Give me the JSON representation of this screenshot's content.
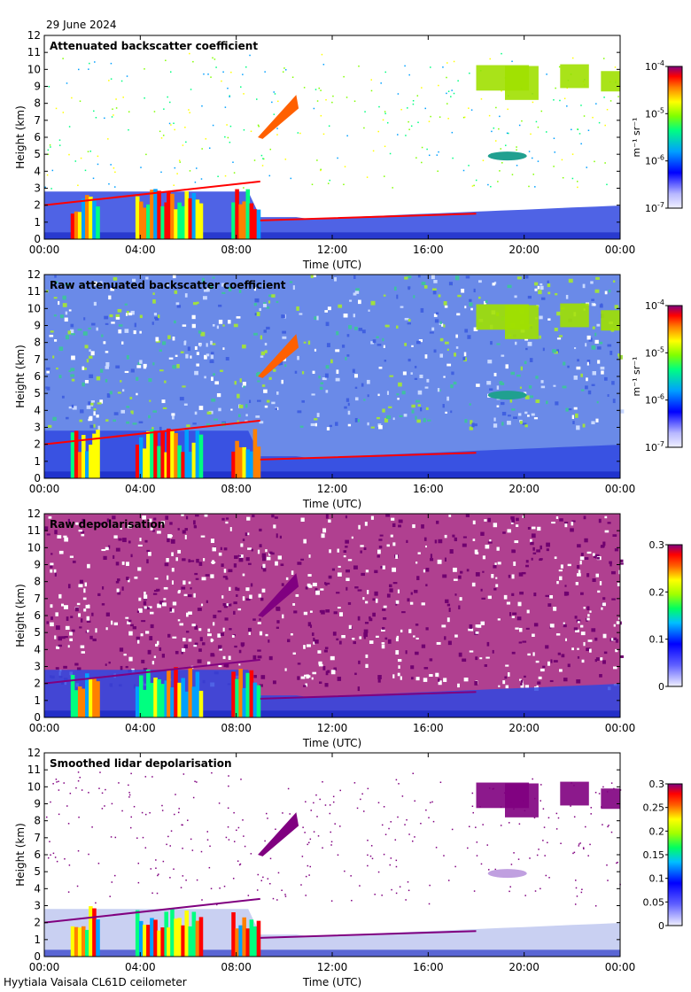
{
  "header": {
    "date": "29 June 2024"
  },
  "footer": {
    "site": "Hyytiala Vaisala CL61D ceilometer"
  },
  "chart_data": [
    {
      "type": "heatmap",
      "title": "Attenuated backscatter coefficient",
      "xlabel": "Time (UTC)",
      "ylabel": "Height (km)",
      "x_ticks": [
        "00:00",
        "04:00",
        "08:00",
        "12:00",
        "16:00",
        "20:00",
        "00:00"
      ],
      "xlim": [
        0,
        24
      ],
      "ylim": [
        0,
        12
      ],
      "y_ticks": [
        "0",
        "1",
        "2",
        "3",
        "4",
        "5",
        "6",
        "7",
        "8",
        "9",
        "10",
        "11",
        "12"
      ],
      "colorbar": {
        "scale": "log",
        "ticks": [
          "10",
          "10",
          "10",
          "10"
        ],
        "exponents": [
          "-7",
          "-6",
          "-5",
          "-4"
        ],
        "tick_values": [
          0,
          1,
          2,
          3
        ],
        "unit": "m⁻¹ sr⁻¹",
        "colormap": "jet"
      }
    },
    {
      "type": "heatmap",
      "title": "Raw attenuated backscatter coefficient",
      "xlabel": "Time (UTC)",
      "ylabel": "Height (km)",
      "x_ticks": [
        "00:00",
        "04:00",
        "08:00",
        "12:00",
        "16:00",
        "20:00",
        "00:00"
      ],
      "xlim": [
        0,
        24
      ],
      "ylim": [
        0,
        12
      ],
      "y_ticks": [
        "0",
        "1",
        "2",
        "3",
        "4",
        "5",
        "6",
        "7",
        "8",
        "9",
        "10",
        "11",
        "12"
      ],
      "colorbar": {
        "scale": "log",
        "ticks": [
          "10",
          "10",
          "10",
          "10"
        ],
        "exponents": [
          "-7",
          "-6",
          "-5",
          "-4"
        ],
        "tick_values": [
          0,
          1,
          2,
          3
        ],
        "unit": "m⁻¹ sr⁻¹",
        "colormap": "jet"
      }
    },
    {
      "type": "heatmap",
      "title": "Raw depolarisation",
      "xlabel": "Time (UTC)",
      "ylabel": "Height (km)",
      "x_ticks": [
        "00:00",
        "04:00",
        "08:00",
        "12:00",
        "16:00",
        "20:00",
        "00:00"
      ],
      "xlim": [
        0,
        24
      ],
      "ylim": [
        0,
        12
      ],
      "y_ticks": [
        "0",
        "1",
        "2",
        "3",
        "4",
        "5",
        "6",
        "7",
        "8",
        "9",
        "10",
        "11",
        "12"
      ],
      "colorbar": {
        "scale": "linear",
        "ticks": [
          "0",
          "0.1",
          "0.2",
          "0.3"
        ],
        "tick_values": [
          0,
          0.1,
          0.2,
          0.3
        ],
        "range": [
          0,
          0.3
        ],
        "unit": "",
        "colormap": "jet"
      }
    },
    {
      "type": "heatmap",
      "title": "Smoothed lidar depolarisation",
      "xlabel": "Time (UTC)",
      "ylabel": "Height (km)",
      "x_ticks": [
        "00:00",
        "04:00",
        "08:00",
        "12:00",
        "16:00",
        "20:00",
        "00:00"
      ],
      "xlim": [
        0,
        24
      ],
      "ylim": [
        0,
        12
      ],
      "y_ticks": [
        "0",
        "1",
        "2",
        "3",
        "4",
        "5",
        "6",
        "7",
        "8",
        "9",
        "10",
        "11",
        "12"
      ],
      "colorbar": {
        "scale": "linear",
        "ticks": [
          "0",
          "0.05",
          "0.1",
          "0.15",
          "0.2",
          "0.25",
          "0.3"
        ],
        "tick_values": [
          0,
          0.05,
          0.1,
          0.15,
          0.2,
          0.25,
          0.3
        ],
        "range": [
          0,
          0.3
        ],
        "unit": "",
        "colormap": "jet"
      }
    }
  ],
  "colors": {
    "background": "#ffffff",
    "axis": "#000000",
    "jet": [
      "#f0f0ff",
      "#b8b8ff",
      "#0000ff",
      "#00a0ff",
      "#00ff80",
      "#80ff00",
      "#ffff00",
      "#ff8000",
      "#ff0000",
      "#800080"
    ]
  }
}
